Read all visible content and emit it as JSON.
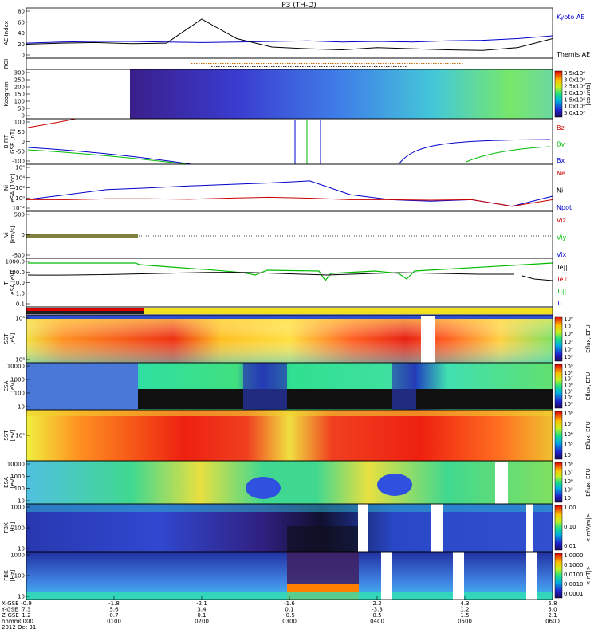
{
  "title": "P3 (TH-D)",
  "colors": {
    "kyoto": "#0000cc",
    "themis": "#000000",
    "red": "#cc0000",
    "green": "#00bb00",
    "blue": "#0000cc",
    "axis": "#000000"
  },
  "panels": [
    {
      "id": "ae",
      "ylabel": "AE Index",
      "unit": "",
      "ticks": [
        "80",
        "60",
        "40",
        "20",
        "0"
      ],
      "right_labels": [
        "Kyoto AE",
        "Themis AE"
      ]
    },
    {
      "id": "roi",
      "ylabel": "ROI",
      "unit": "",
      "ticks": [],
      "right_labels": []
    },
    {
      "id": "keogram",
      "ylabel": "Keogram",
      "unit": "",
      "ticks": [
        "300",
        "250",
        "200",
        "150",
        "100",
        "50",
        "0"
      ],
      "right_labels": [],
      "colorbar_ticks": [
        "3.5x10⁴",
        "3.0x10⁴",
        "2.5x10⁴",
        "2.0x10⁴",
        "1.5x10⁴",
        "1.0x10⁴",
        "5.0x10³"
      ],
      "colorbar_label": "[counts]"
    },
    {
      "id": "bfield",
      "ylabel": "B FIT",
      "unit": "GSE [nT]",
      "ticks": [
        "100",
        "50",
        "0",
        "-50",
        "-100"
      ],
      "right_labels": [
        "Bz",
        "By",
        "Bx"
      ]
    },
    {
      "id": "density",
      "ylabel": "Ni",
      "unit": "eSA [1/cc]",
      "ticks": [
        "10⁶",
        "10⁴",
        "10²",
        "10⁰",
        "10⁻²"
      ],
      "right_labels": [
        "Ne",
        "Ni",
        "Npot"
      ]
    },
    {
      "id": "velocity",
      "ylabel": "Vi",
      "unit": "[km/s]",
      "ticks": [
        "500",
        "0",
        "-500"
      ],
      "right_labels": [
        "Viz",
        "Viy",
        "Vix"
      ]
    },
    {
      "id": "temp",
      "ylabel": "Ti",
      "unit": "eSA [eV]",
      "ticks": [
        "1000.0",
        "100.0",
        "10.0",
        "1.0",
        "0.1"
      ],
      "right_labels": [
        "Te||",
        "Te⊥",
        "Ti||",
        "Ti⊥"
      ]
    },
    {
      "id": "mode",
      "ylabel": "",
      "unit": "",
      "ticks": [],
      "right_labels": []
    },
    {
      "id": "sst_e",
      "ylabel": "SST",
      "unit": "[eV]",
      "ticks": [
        "10⁶",
        "10⁵"
      ],
      "right_labels": [],
      "colorbar_ticks": [
        "10⁸",
        "10⁷",
        "10⁶",
        "10⁵",
        "10⁴",
        "10³"
      ],
      "colorbar_label": "Eflux, EFU"
    },
    {
      "id": "esa_e",
      "ylabel": "ESA",
      "unit": "[eV]",
      "ticks": [
        "10000",
        "1000",
        "100",
        "10"
      ],
      "right_labels": [],
      "colorbar_ticks": [
        "10⁹",
        "10⁸",
        "10⁷",
        "10⁶",
        "10⁵",
        "10⁴",
        "10³"
      ],
      "colorbar_label": "Eflux, EFU"
    },
    {
      "id": "sst_i",
      "ylabel": "SST",
      "unit": "[eV]",
      "ticks": [
        "10⁵"
      ],
      "right_labels": [],
      "colorbar_ticks": [
        "10⁸",
        "10⁷",
        "10⁶",
        "10⁵",
        "10⁴"
      ],
      "colorbar_label": "Eflux, EFU"
    },
    {
      "id": "esa_i",
      "ylabel": "ESA",
      "unit": "[eV]",
      "ticks": [
        "10000",
        "1000",
        "100",
        "10"
      ],
      "right_labels": [],
      "colorbar_ticks": [
        "10⁸",
        "10⁷",
        "10⁶",
        "10⁵",
        "10⁴"
      ],
      "colorbar_label": "Eflux, EFU"
    },
    {
      "id": "fbk_e",
      "ylabel": "FBK",
      "unit": "[Hz]",
      "ticks": [
        "1000",
        "100",
        "10"
      ],
      "right_labels": [],
      "colorbar_ticks": [
        "1.00",
        "0.10",
        "0.01"
      ],
      "colorbar_label": "<|mV/m|>"
    },
    {
      "id": "fbk_b",
      "ylabel": "FBK",
      "unit": "[Hz]",
      "ticks": [
        "1000",
        "100",
        "10"
      ],
      "right_labels": [],
      "colorbar_ticks": [
        "1.0000",
        "0.1000",
        "0.0100",
        "0.0010",
        "0.0001"
      ],
      "colorbar_label": "<|nT|>"
    }
  ],
  "x_axis": {
    "row_labels": [
      "X-GSE",
      "Y-GSE",
      "Z-GSE",
      "hhmm",
      "2012 Oct 31"
    ],
    "columns": [
      {
        "values": [
          "-0.9",
          "7.3",
          "1.2",
          "0000"
        ]
      },
      {
        "values": [
          "-1.8",
          "5.6",
          "0.7",
          "0100"
        ]
      },
      {
        "values": [
          "-2.1",
          "3.4",
          "0.1",
          "0200"
        ]
      },
      {
        "values": [
          "-1.6",
          "0.1",
          "-0.5",
          "0300"
        ]
      },
      {
        "values": [
          "2.3",
          "-3.8",
          "0.5",
          "0400"
        ]
      },
      {
        "values": [
          "4.3",
          "1.2",
          "1.5",
          "0500"
        ]
      },
      {
        "values": [
          "5.8",
          "5.0",
          "2.1",
          "0600"
        ]
      }
    ]
  },
  "chart_data": {
    "type": "line",
    "title": "P3 (TH-D)",
    "x_range_hhmm": [
      "0000",
      "0600"
    ],
    "series": [
      {
        "name": "Kyoto AE",
        "panel": "ae",
        "values": [
          22,
          24,
          25,
          25,
          24,
          23,
          24,
          25,
          26,
          24,
          25,
          24,
          26,
          27,
          30,
          35
        ]
      },
      {
        "name": "Themis AE",
        "panel": "ae",
        "values": [
          20,
          22,
          23,
          21,
          22,
          65,
          30,
          15,
          12,
          10,
          14,
          12,
          10,
          9,
          14,
          30
        ]
      },
      {
        "name": "Ni",
        "panel": "density",
        "values": [
          1,
          10,
          100,
          200,
          500,
          1000,
          2000,
          5000,
          10,
          1,
          0.5,
          1,
          0.05,
          5
        ]
      },
      {
        "name": "Ne",
        "panel": "density",
        "values": [
          1,
          1,
          1.5,
          1.5,
          1.2,
          2,
          3,
          2,
          1,
          1,
          0.8,
          1,
          0.05,
          1
        ]
      }
    ]
  }
}
